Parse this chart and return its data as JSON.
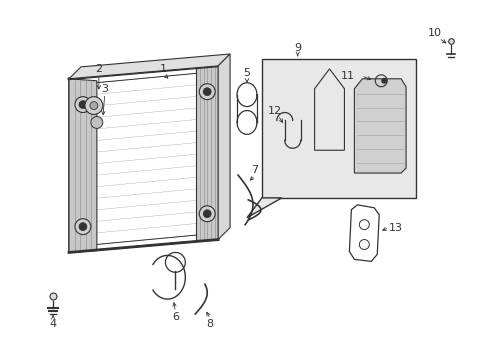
{
  "background_color": "#ffffff",
  "figure_size": [
    4.89,
    3.6
  ],
  "dpi": 100,
  "line_color": "#333333",
  "box_fill": "#e8e8e8",
  "tank_fill": "#c8c8c8",
  "font_size": 8
}
